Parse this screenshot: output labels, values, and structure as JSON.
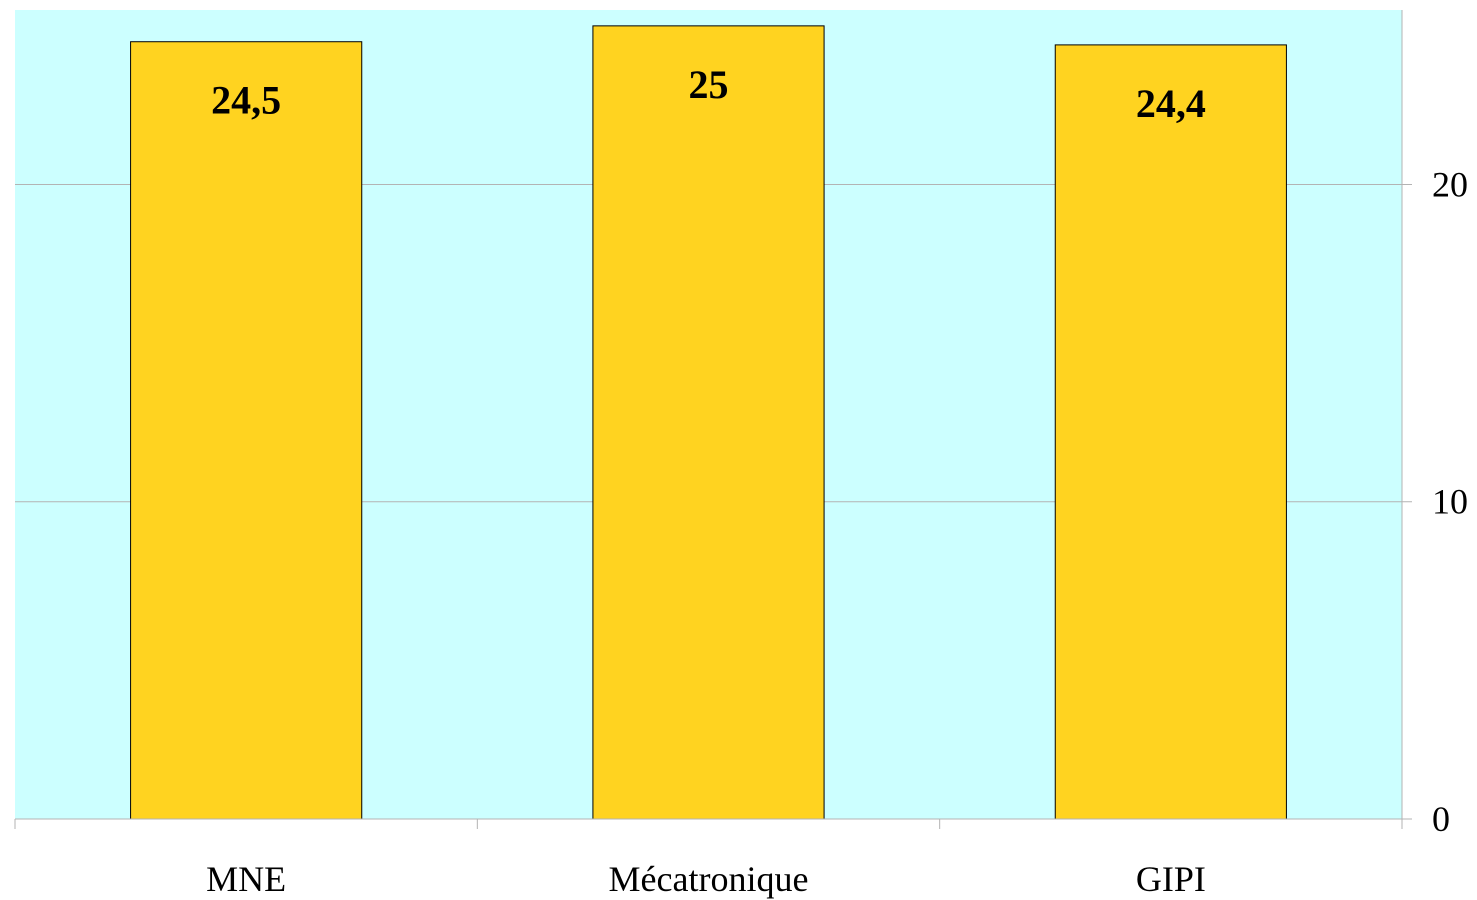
{
  "chart_data": {
    "type": "bar",
    "categories": [
      "MNE",
      "Mécatronique",
      "GIPI"
    ],
    "values": [
      24.5,
      25,
      24.4
    ],
    "data_labels": [
      "24,5",
      "25",
      "24,4"
    ],
    "title": "",
    "xlabel": "",
    "ylabel": "",
    "ylim": [
      0,
      25.5
    ],
    "y_ticks": [
      0,
      10,
      20
    ],
    "y_tick_labels": [
      "0",
      "10",
      "20"
    ],
    "y_axis_side": "right",
    "grid": true,
    "legend": "none",
    "colors": {
      "plot_background": "#ccffff",
      "bar_fill": "#ffd320",
      "bar_stroke": "#000000",
      "gridline": "#b3b3b3",
      "axis": "#b3b3b3"
    }
  }
}
